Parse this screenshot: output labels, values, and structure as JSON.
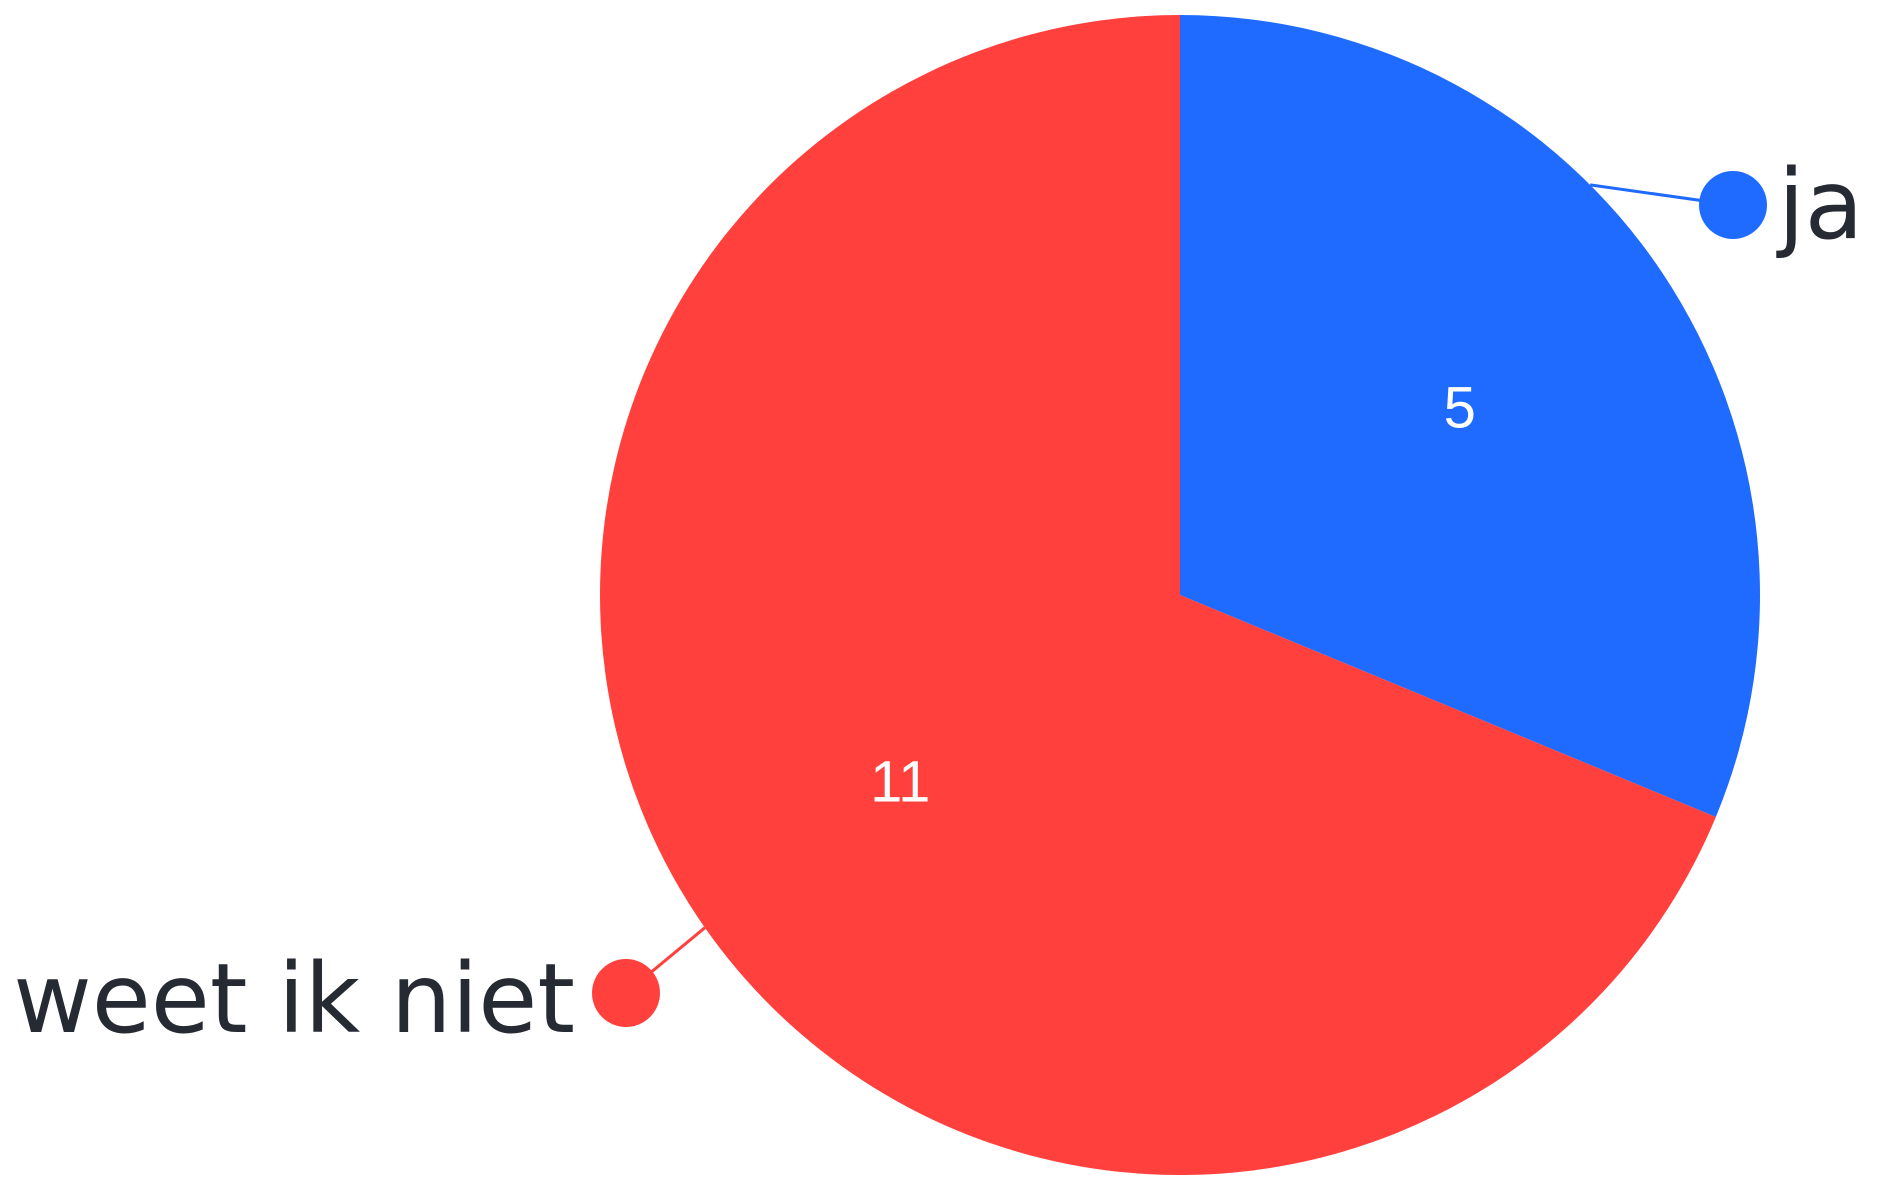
{
  "chart_data": {
    "type": "pie",
    "start_angle_deg": 0,
    "direction": "clockwise",
    "legend_placement": "outside-labels",
    "slices": [
      {
        "label": "ja",
        "value": 5,
        "color": "#1f6bff"
      },
      {
        "label": "weet ik niet",
        "value": 11,
        "color": "#ff403d"
      }
    ]
  },
  "colors": {
    "background": "#ffffff",
    "label_text": "#262a33",
    "value_text": "#ffffff"
  }
}
